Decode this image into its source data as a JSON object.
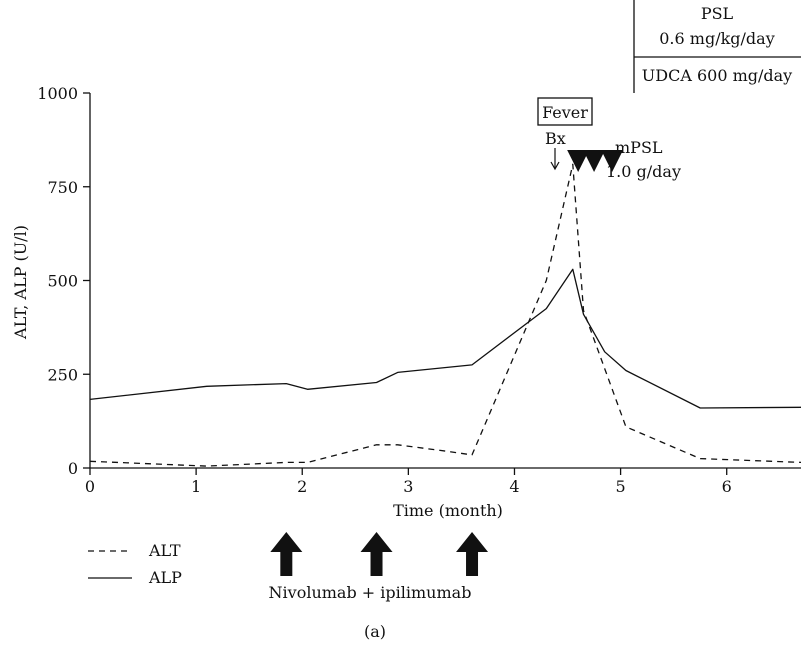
{
  "chart_data": {
    "type": "line",
    "xlabel": "Time (month)",
    "ylabel": "ALT, ALP (U/l)",
    "xlim": [
      0,
      6.7
    ],
    "ylim": [
      0,
      1000
    ],
    "x_ticks": [
      "0",
      "1",
      "2",
      "3",
      "4",
      "5",
      "6"
    ],
    "y_ticks": [
      "0",
      "250",
      "500",
      "750",
      "1000"
    ],
    "grid": false,
    "legend_position": "bottom-left",
    "series": [
      {
        "name": "ALT",
        "style": "dashed",
        "points": [
          [
            0,
            18
          ],
          [
            1.1,
            5
          ],
          [
            1.85,
            15
          ],
          [
            2.05,
            15
          ],
          [
            2.7,
            62
          ],
          [
            2.9,
            62
          ],
          [
            3.35,
            45
          ],
          [
            3.6,
            35
          ],
          [
            4.3,
            500
          ],
          [
            4.55,
            810
          ],
          [
            4.65,
            420
          ],
          [
            5.05,
            110
          ],
          [
            5.75,
            25
          ],
          [
            6.7,
            15
          ]
        ]
      },
      {
        "name": "ALP",
        "style": "solid",
        "points": [
          [
            0,
            183
          ],
          [
            1.1,
            218
          ],
          [
            1.85,
            225
          ],
          [
            2.05,
            210
          ],
          [
            2.7,
            228
          ],
          [
            2.9,
            255
          ],
          [
            3.6,
            275
          ],
          [
            4.3,
            425
          ],
          [
            4.55,
            530
          ],
          [
            4.65,
            410
          ],
          [
            4.85,
            310
          ],
          [
            5.05,
            260
          ],
          [
            5.75,
            160
          ],
          [
            6.7,
            162
          ]
        ]
      }
    ],
    "annotations": {
      "panel_label": "(a)",
      "fever_label": "Fever",
      "bx_label": "Bx",
      "mpsl_label": "mPSL",
      "mpsl_dose": "1.0 g/day",
      "psl_label": "PSL",
      "psl_dose": "0.6 mg/kg/day",
      "udca_label": "UDCA 600 mg/day",
      "treatment_label": "Nivolumab + ipilimumab",
      "treatment_doses_month": [
        1.85,
        2.7,
        3.6
      ],
      "mpsl_pulses_month": [
        4.6,
        4.75,
        4.92
      ]
    },
    "colors": {
      "lines": "#111111",
      "arrows": "#111111",
      "background": "#ffffff"
    }
  }
}
